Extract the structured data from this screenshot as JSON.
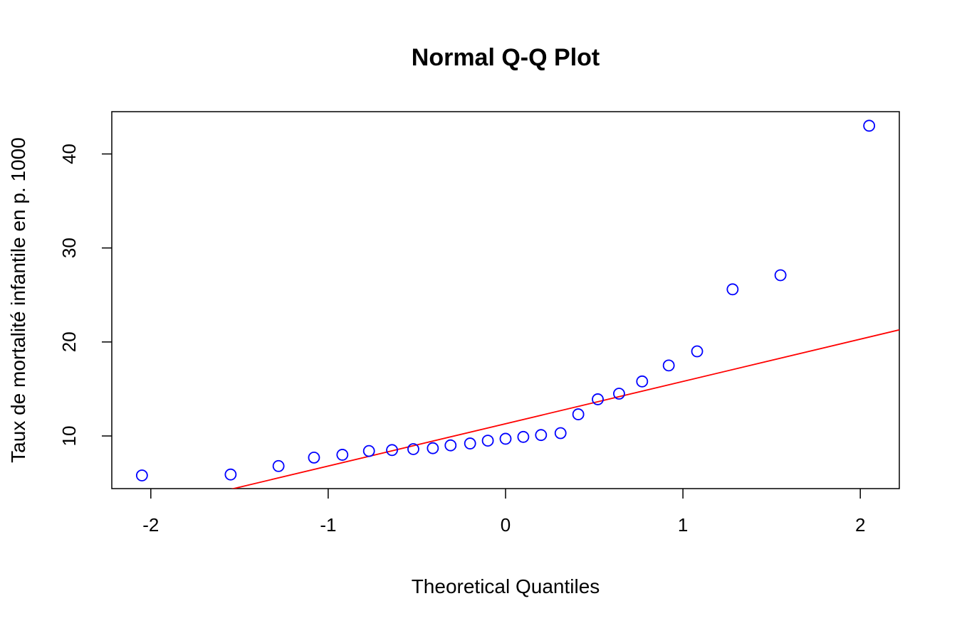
{
  "chart_data": {
    "type": "scatter",
    "title": "Normal Q-Q Plot",
    "xlabel": "Theoretical Quantiles",
    "ylabel": "Taux de mortalité infantile en p. 1000",
    "xlim": [
      -2.22,
      2.22
    ],
    "ylim": [
      4.4,
      44.5
    ],
    "xticks": [
      -2,
      -1,
      0,
      1,
      2
    ],
    "xtick_labels": [
      "-2",
      "-1",
      "0",
      "1",
      "2"
    ],
    "yticks": [
      10,
      20,
      30,
      40
    ],
    "ytick_labels": [
      "10",
      "20",
      "30",
      "40"
    ],
    "grid": false,
    "series": [
      {
        "kind": "points",
        "x": [
          -2.05,
          -1.55,
          -1.28,
          -1.08,
          -0.92,
          -0.77,
          -0.64,
          -0.52,
          -0.41,
          -0.31,
          -0.2,
          -0.1,
          0.0,
          0.1,
          0.2,
          0.31,
          0.41,
          0.52,
          0.64,
          0.77,
          0.92,
          1.08,
          1.28,
          1.55,
          2.05
        ],
        "y": [
          5.8,
          5.9,
          6.8,
          7.7,
          8.0,
          8.4,
          8.5,
          8.6,
          8.7,
          9.0,
          9.2,
          9.5,
          9.7,
          9.9,
          10.1,
          10.3,
          12.3,
          13.9,
          14.5,
          15.8,
          17.5,
          19.0,
          25.6,
          27.1,
          43.0
        ]
      },
      {
        "kind": "reference-line",
        "slope": 4.5,
        "intercept": 11.3
      }
    ],
    "colors": {
      "points": "#0000ff",
      "line": "#ff0000",
      "axes": "#000000"
    }
  }
}
